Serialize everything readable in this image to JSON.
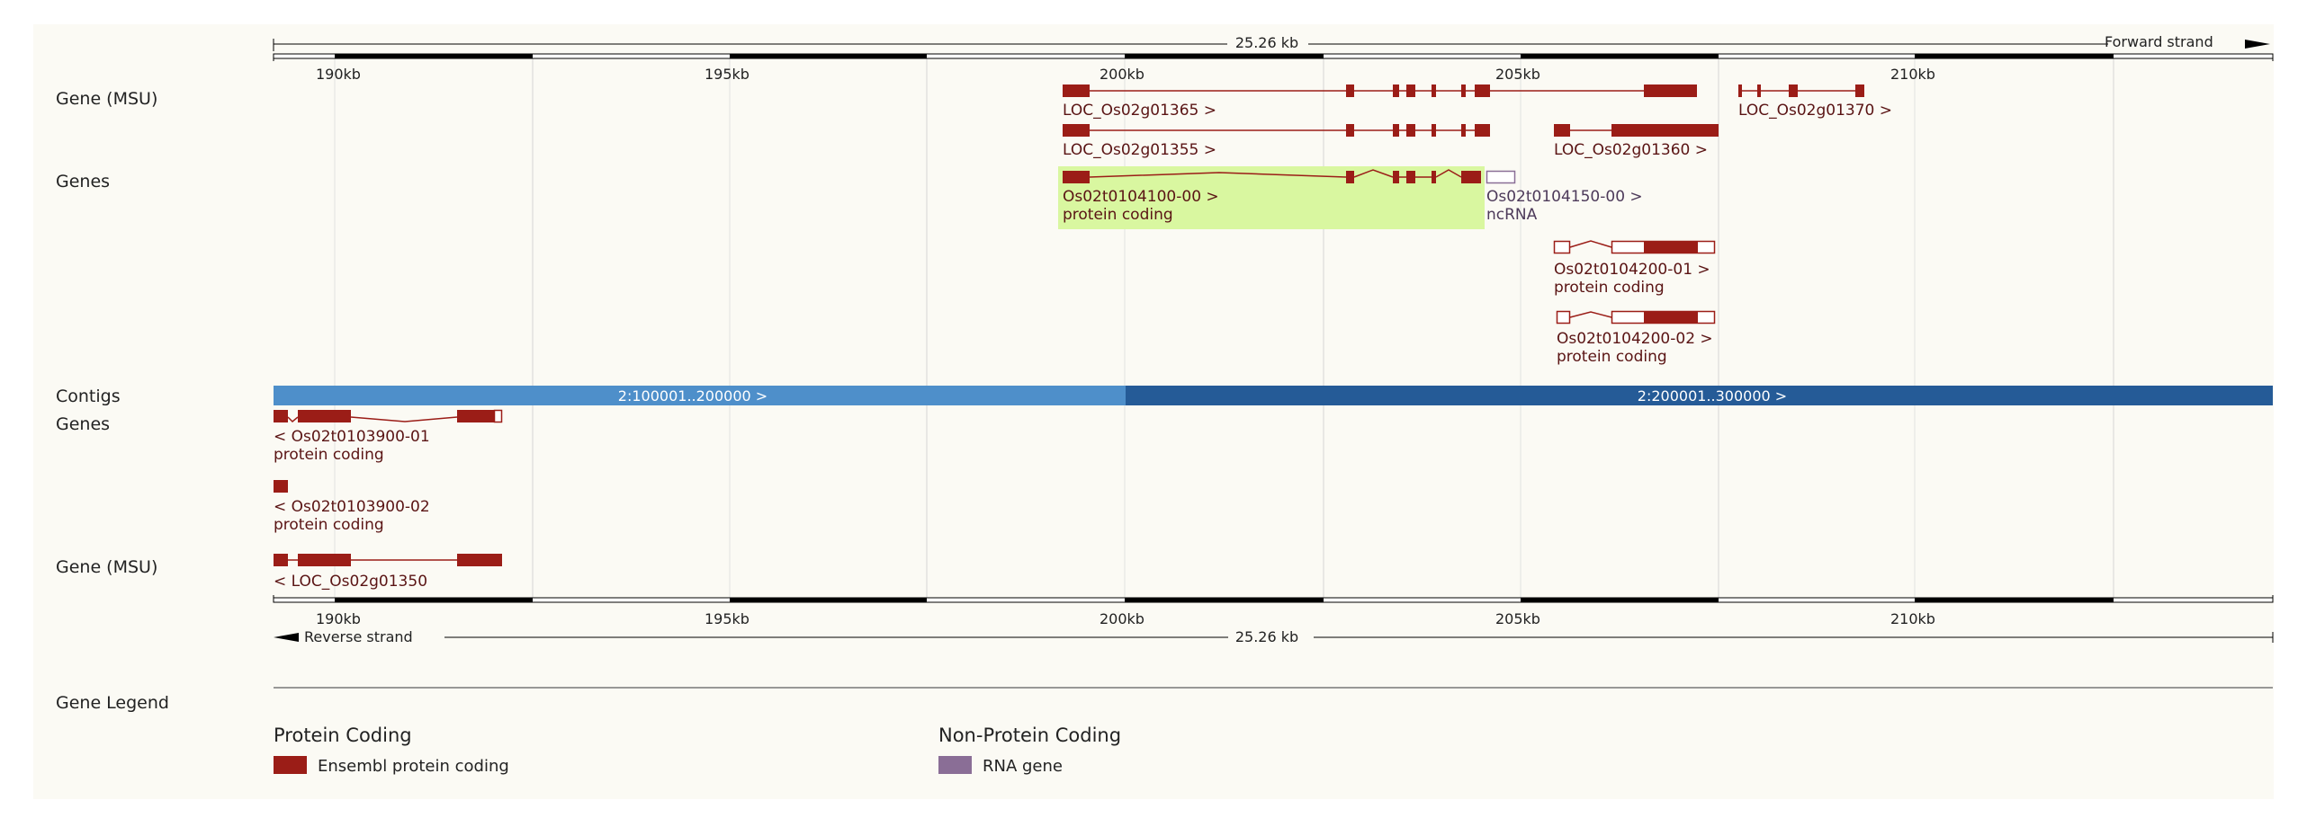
{
  "scale": {
    "length_label": "25.26 kb",
    "forward_label": "Forward strand",
    "reverse_label": "Reverse strand",
    "top_ticks": [
      "190kb",
      "195kb",
      "200kb",
      "205kb",
      "210kb"
    ],
    "bottom_ticks": [
      "190kb",
      "195kb",
      "200kb",
      "205kb",
      "210kb"
    ]
  },
  "track_labels": {
    "gene_msu_top": "Gene (MSU)",
    "genes_top": "Genes",
    "contigs": "Contigs",
    "genes_bottom": "Genes",
    "gene_msu_bottom": "Gene (MSU)",
    "gene_legend": "Gene Legend"
  },
  "features": {
    "loc_01365": "LOC_Os02g01365 >",
    "loc_01370": "LOC_Os02g01370 >",
    "loc_01355": "LOC_Os02g01355 >",
    "loc_01360": "LOC_Os02g01360 >",
    "t0104100_name": "Os02t0104100-00 >",
    "t0104100_type": "protein coding",
    "t0104150_name": "Os02t0104150-00 >",
    "t0104150_type": "ncRNA",
    "t0104200_01_name": "Os02t0104200-01 >",
    "t0104200_01_type": "protein coding",
    "t0104200_02_name": "Os02t0104200-02 >",
    "t0104200_02_type": "protein coding",
    "contig_left": "2:100001..200000 >",
    "contig_right": "2:200001..300000 >",
    "t0103900_01_name": "< Os02t0103900-01",
    "t0103900_01_type": "protein coding",
    "t0103900_02_name": "< Os02t0103900-02",
    "t0103900_02_type": "protein coding",
    "loc_01350": "< LOC_Os02g01350"
  },
  "legend": {
    "protein_heading": "Protein Coding",
    "protein_item": "Ensembl protein coding",
    "nonprotein_heading": "Non-Protein Coding",
    "nonprotein_item": "RNA gene"
  },
  "colors": {
    "gene": "#9b1d17",
    "ncrna": "#8a6e96",
    "highlight": "#d9f7a0",
    "contig_light": "#4e8fca",
    "contig_dark": "#255b97",
    "panel_bg": "#fbfaf4",
    "label_text": "#5a1414"
  }
}
